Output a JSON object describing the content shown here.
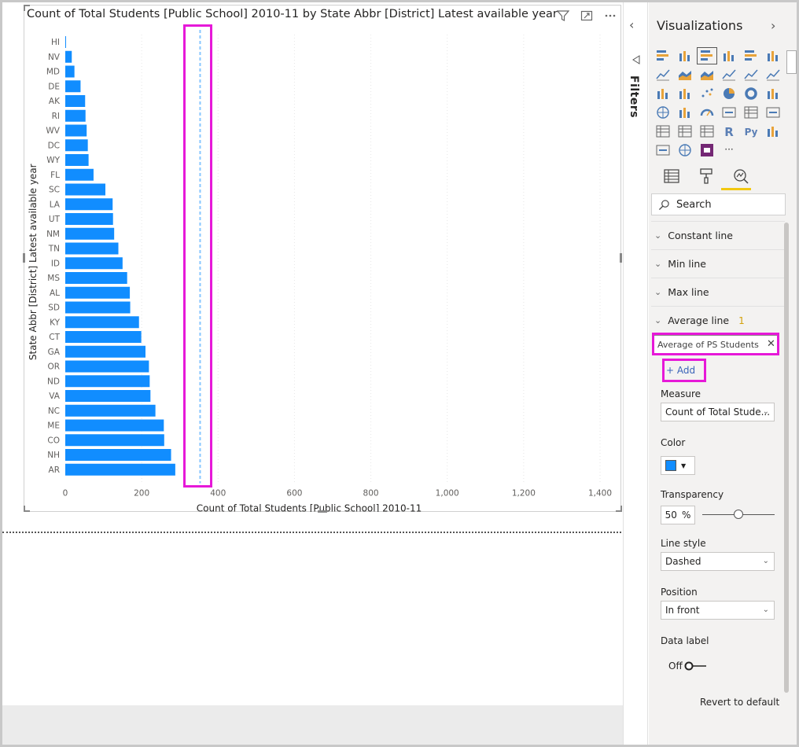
{
  "chart_data": {
    "type": "bar",
    "orientation": "horizontal",
    "title": "Count of Total Students [Public School] 2010-11 by State Abbr [District] Latest available year",
    "xlabel": "Count of Total Students [Public School] 2010-11",
    "ylabel": "State Abbr [District] Latest available year",
    "categories": [
      "HI",
      "NV",
      "MD",
      "DE",
      "AK",
      "RI",
      "WV",
      "DC",
      "WY",
      "FL",
      "SC",
      "LA",
      "UT",
      "NM",
      "TN",
      "ID",
      "MS",
      "AL",
      "SD",
      "KY",
      "CT",
      "GA",
      "OR",
      "ND",
      "VA",
      "NC",
      "ME",
      "CO",
      "NH",
      "AR"
    ],
    "values": [
      1,
      17,
      24,
      40,
      52,
      53,
      56,
      59,
      61,
      74,
      105,
      124,
      125,
      128,
      139,
      150,
      162,
      169,
      170,
      193,
      199,
      210,
      219,
      221,
      223,
      236,
      258,
      259,
      277,
      288
    ],
    "xlim": [
      0,
      1400
    ],
    "xticks": [
      "0",
      "200",
      "400",
      "600",
      "800",
      "1,000",
      "1,200",
      "1,400"
    ],
    "average_line": 353,
    "bar_color": "#118dff"
  },
  "pane": {
    "collapse_chevron": "‹",
    "filters_label": "Filters",
    "title": "Visualizations",
    "expand_chevron": "›",
    "more_label": "···",
    "search_placeholder": "Search",
    "sections": {
      "constant": "Constant line",
      "min": "Min line",
      "max": "Max line",
      "average": "Average line",
      "average_count": "1"
    },
    "average_item": "Average of PS Students",
    "add_label": "+ Add",
    "measure_label": "Measure",
    "measure_value": "Count of Total Stude...",
    "color_label": "Color",
    "color_value": "#118dff",
    "transparency_label": "Transparency",
    "transparency_value": "50",
    "percent": "%",
    "line_style_label": "Line style",
    "line_style_value": "Dashed",
    "position_label": "Position",
    "position_value": "In front",
    "data_label_label": "Data label",
    "data_label_value": "Off",
    "revert_label": "Revert to default"
  }
}
